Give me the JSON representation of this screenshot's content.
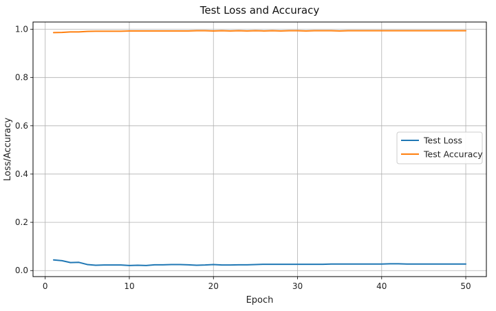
{
  "chart_data": {
    "type": "line",
    "title": "Test Loss and Accuracy",
    "xlabel": "Epoch",
    "ylabel": "Loss/Accuracy",
    "xlim": [
      -1.45,
      52.45
    ],
    "ylim": [
      -0.025,
      1.03
    ],
    "xticks": [
      0,
      10,
      20,
      30,
      40,
      50
    ],
    "yticks": [
      0.0,
      0.2,
      0.4,
      0.6,
      0.8,
      1.0
    ],
    "xtick_labels": [
      "0",
      "10",
      "20",
      "30",
      "40",
      "50"
    ],
    "ytick_labels": [
      "0.0",
      "0.2",
      "0.4",
      "0.6",
      "0.8",
      "1.0"
    ],
    "grid": true,
    "legend_position": "center-right",
    "x": [
      1,
      2,
      3,
      4,
      5,
      6,
      7,
      8,
      9,
      10,
      11,
      12,
      13,
      14,
      15,
      16,
      17,
      18,
      19,
      20,
      21,
      22,
      23,
      24,
      25,
      26,
      27,
      28,
      29,
      30,
      31,
      32,
      33,
      34,
      35,
      36,
      37,
      38,
      39,
      40,
      41,
      42,
      43,
      44,
      45,
      46,
      47,
      48,
      49,
      50
    ],
    "series": [
      {
        "name": "Test Loss",
        "color": "#1f77b4",
        "values": [
          0.044,
          0.041,
          0.033,
          0.034,
          0.025,
          0.022,
          0.023,
          0.023,
          0.023,
          0.021,
          0.022,
          0.021,
          0.024,
          0.024,
          0.025,
          0.025,
          0.024,
          0.022,
          0.023,
          0.025,
          0.023,
          0.023,
          0.024,
          0.024,
          0.025,
          0.026,
          0.026,
          0.026,
          0.026,
          0.026,
          0.026,
          0.026,
          0.026,
          0.027,
          0.027,
          0.027,
          0.027,
          0.027,
          0.027,
          0.027,
          0.028,
          0.028,
          0.027,
          0.027,
          0.027,
          0.027,
          0.027,
          0.027,
          0.027,
          0.027
        ]
      },
      {
        "name": "Test Accuracy",
        "color": "#ff7f0e",
        "values": [
          0.986,
          0.987,
          0.989,
          0.989,
          0.991,
          0.992,
          0.992,
          0.992,
          0.992,
          0.993,
          0.993,
          0.993,
          0.993,
          0.993,
          0.993,
          0.993,
          0.993,
          0.994,
          0.994,
          0.993,
          0.994,
          0.993,
          0.994,
          0.993,
          0.994,
          0.993,
          0.994,
          0.993,
          0.994,
          0.994,
          0.993,
          0.994,
          0.994,
          0.994,
          0.993,
          0.994,
          0.994,
          0.994,
          0.994,
          0.994,
          0.994,
          0.994,
          0.994,
          0.994,
          0.994,
          0.994,
          0.994,
          0.994,
          0.994,
          0.994
        ]
      }
    ]
  }
}
